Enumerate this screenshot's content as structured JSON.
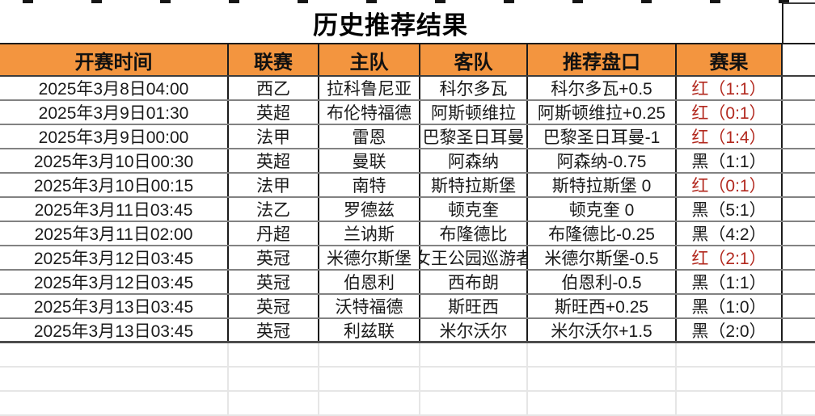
{
  "title": "历史推荐结果",
  "table": {
    "columns": [
      "开赛时间",
      "联赛",
      "主队",
      "客队",
      "推荐盘口",
      "赛果"
    ],
    "rows": [
      {
        "time": "2025年3月8日04:00",
        "league": "西乙",
        "home": "拉科鲁尼亚",
        "away": "科尔多瓦",
        "handicap": "科尔多瓦+0.5",
        "result": "红（1:1）",
        "result_type": "red"
      },
      {
        "time": "2025年3月9日01:30",
        "league": "英超",
        "home": "布伦特福德",
        "away": "阿斯顿维拉",
        "handicap": "阿斯顿维拉+0.25",
        "result": "红（0:1）",
        "result_type": "red"
      },
      {
        "time": "2025年3月9日00:00",
        "league": "法甲",
        "home": "雷恩",
        "away": "巴黎圣日耳曼",
        "handicap": "巴黎圣日耳曼-1",
        "result": "红（1:4）",
        "result_type": "red"
      },
      {
        "time": "2025年3月10日00:30",
        "league": "英超",
        "home": "曼联",
        "away": "阿森纳",
        "handicap": "阿森纳-0.75",
        "result": "黑（1:1）",
        "result_type": "black"
      },
      {
        "time": "2025年3月10日00:15",
        "league": "法甲",
        "home": "南特",
        "away": "斯特拉斯堡",
        "handicap": "斯特拉斯堡 0",
        "result": "红（0:1）",
        "result_type": "red"
      },
      {
        "time": "2025年3月11日03:45",
        "league": "法乙",
        "home": "罗德兹",
        "away": "顿克奎",
        "handicap": "顿克奎 0",
        "result": "黑（5:1）",
        "result_type": "black"
      },
      {
        "time": "2025年3月11日02:00",
        "league": "丹超",
        "home": "兰讷斯",
        "away": "布隆德比",
        "handicap": "布隆德比-0.25",
        "result": "黑（4:2）",
        "result_type": "black"
      },
      {
        "time": "2025年3月12日03:45",
        "league": "英冠",
        "home": "米德尔斯堡",
        "away": "女王公园巡游者",
        "handicap": "米德尔斯堡-0.5",
        "result": "红（2:1）",
        "result_type": "red"
      },
      {
        "time": "2025年3月12日03:45",
        "league": "英冠",
        "home": "伯恩利",
        "away": "西布朗",
        "handicap": "伯恩利-0.5",
        "result": "黑（1:1）",
        "result_type": "black"
      },
      {
        "time": "2025年3月13日03:45",
        "league": "英冠",
        "home": "沃特福德",
        "away": "斯旺西",
        "handicap": "斯旺西+0.25",
        "result": "黑（1:0）",
        "result_type": "black"
      },
      {
        "time": "2025年3月13日03:45",
        "league": "英冠",
        "home": "利兹联",
        "away": "米尔沃尔",
        "handicap": "米尔沃尔+1.5",
        "result": "黑（2:0）",
        "result_type": "black"
      }
    ],
    "empty_row_count": 3
  },
  "colors": {
    "header_bg": "#F3953F",
    "result_red": "#B2281E",
    "result_black": "#1A1A1A",
    "grid_dark": "#1C1C1C",
    "grid_gray": "#828282",
    "grid_faint": "#E6E6E6"
  }
}
